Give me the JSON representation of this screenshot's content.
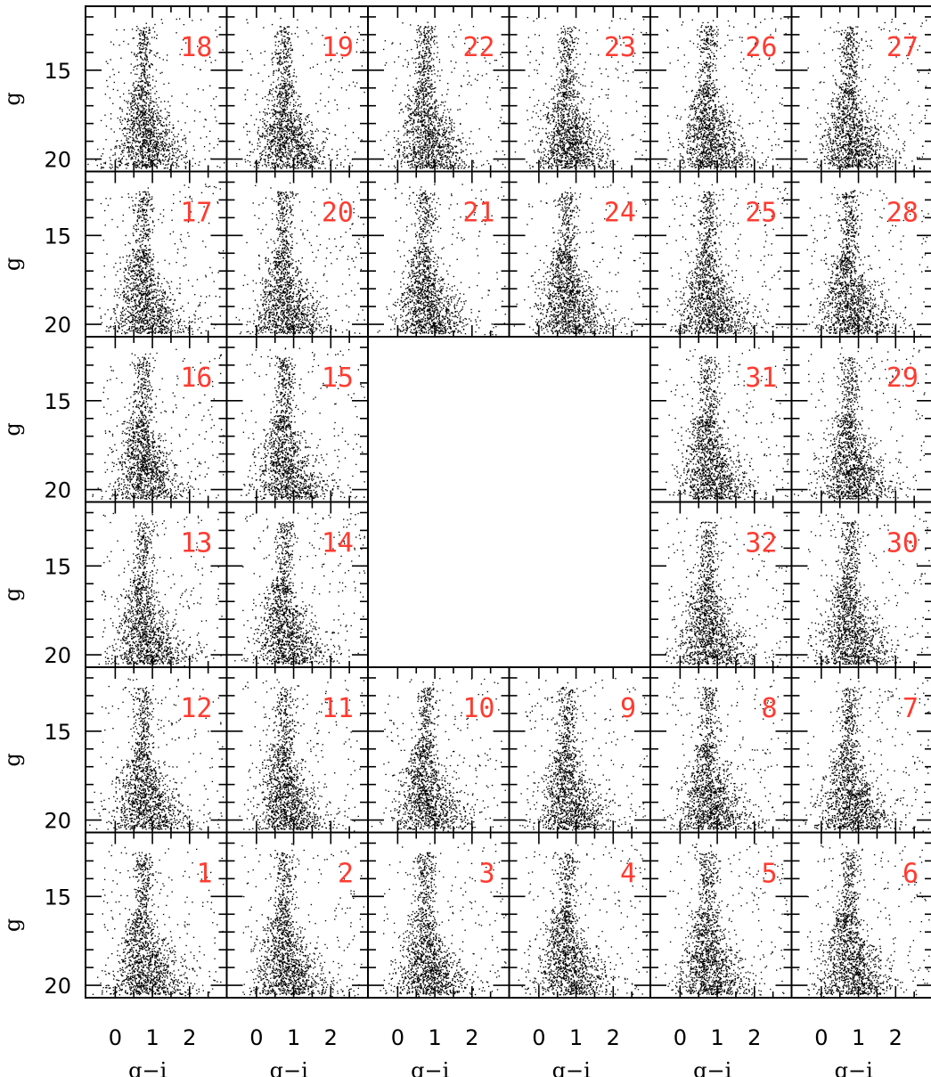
{
  "chart_data": {
    "type": "scatter",
    "description_of_points": "dense colour-magnitude point clouds; individual points not recoverable",
    "xlabel": "g−i",
    "ylabel": "g",
    "xlim": [
      -0.8,
      3.0
    ],
    "ylim": [
      20.7,
      11.4
    ],
    "y_inverted": true,
    "xticks": [
      0,
      1,
      2
    ],
    "yticks": [
      15,
      20
    ],
    "grid": false,
    "label_color": "#ff3b30",
    "panel_order": "rows top-to-bottom, columns left-to-right; null = empty cell",
    "panels": [
      [
        "18",
        "19",
        "22",
        "23",
        "26",
        "27"
      ],
      [
        "17",
        "20",
        "21",
        "24",
        "25",
        "28"
      ],
      [
        "16",
        "15",
        null,
        null,
        "31",
        "29"
      ],
      [
        "13",
        "14",
        null,
        null,
        "32",
        "30"
      ],
      [
        "12",
        "11",
        "10",
        "9",
        "8",
        "7"
      ],
      [
        "1",
        "2",
        "3",
        "4",
        "5",
        "6"
      ]
    ]
  }
}
